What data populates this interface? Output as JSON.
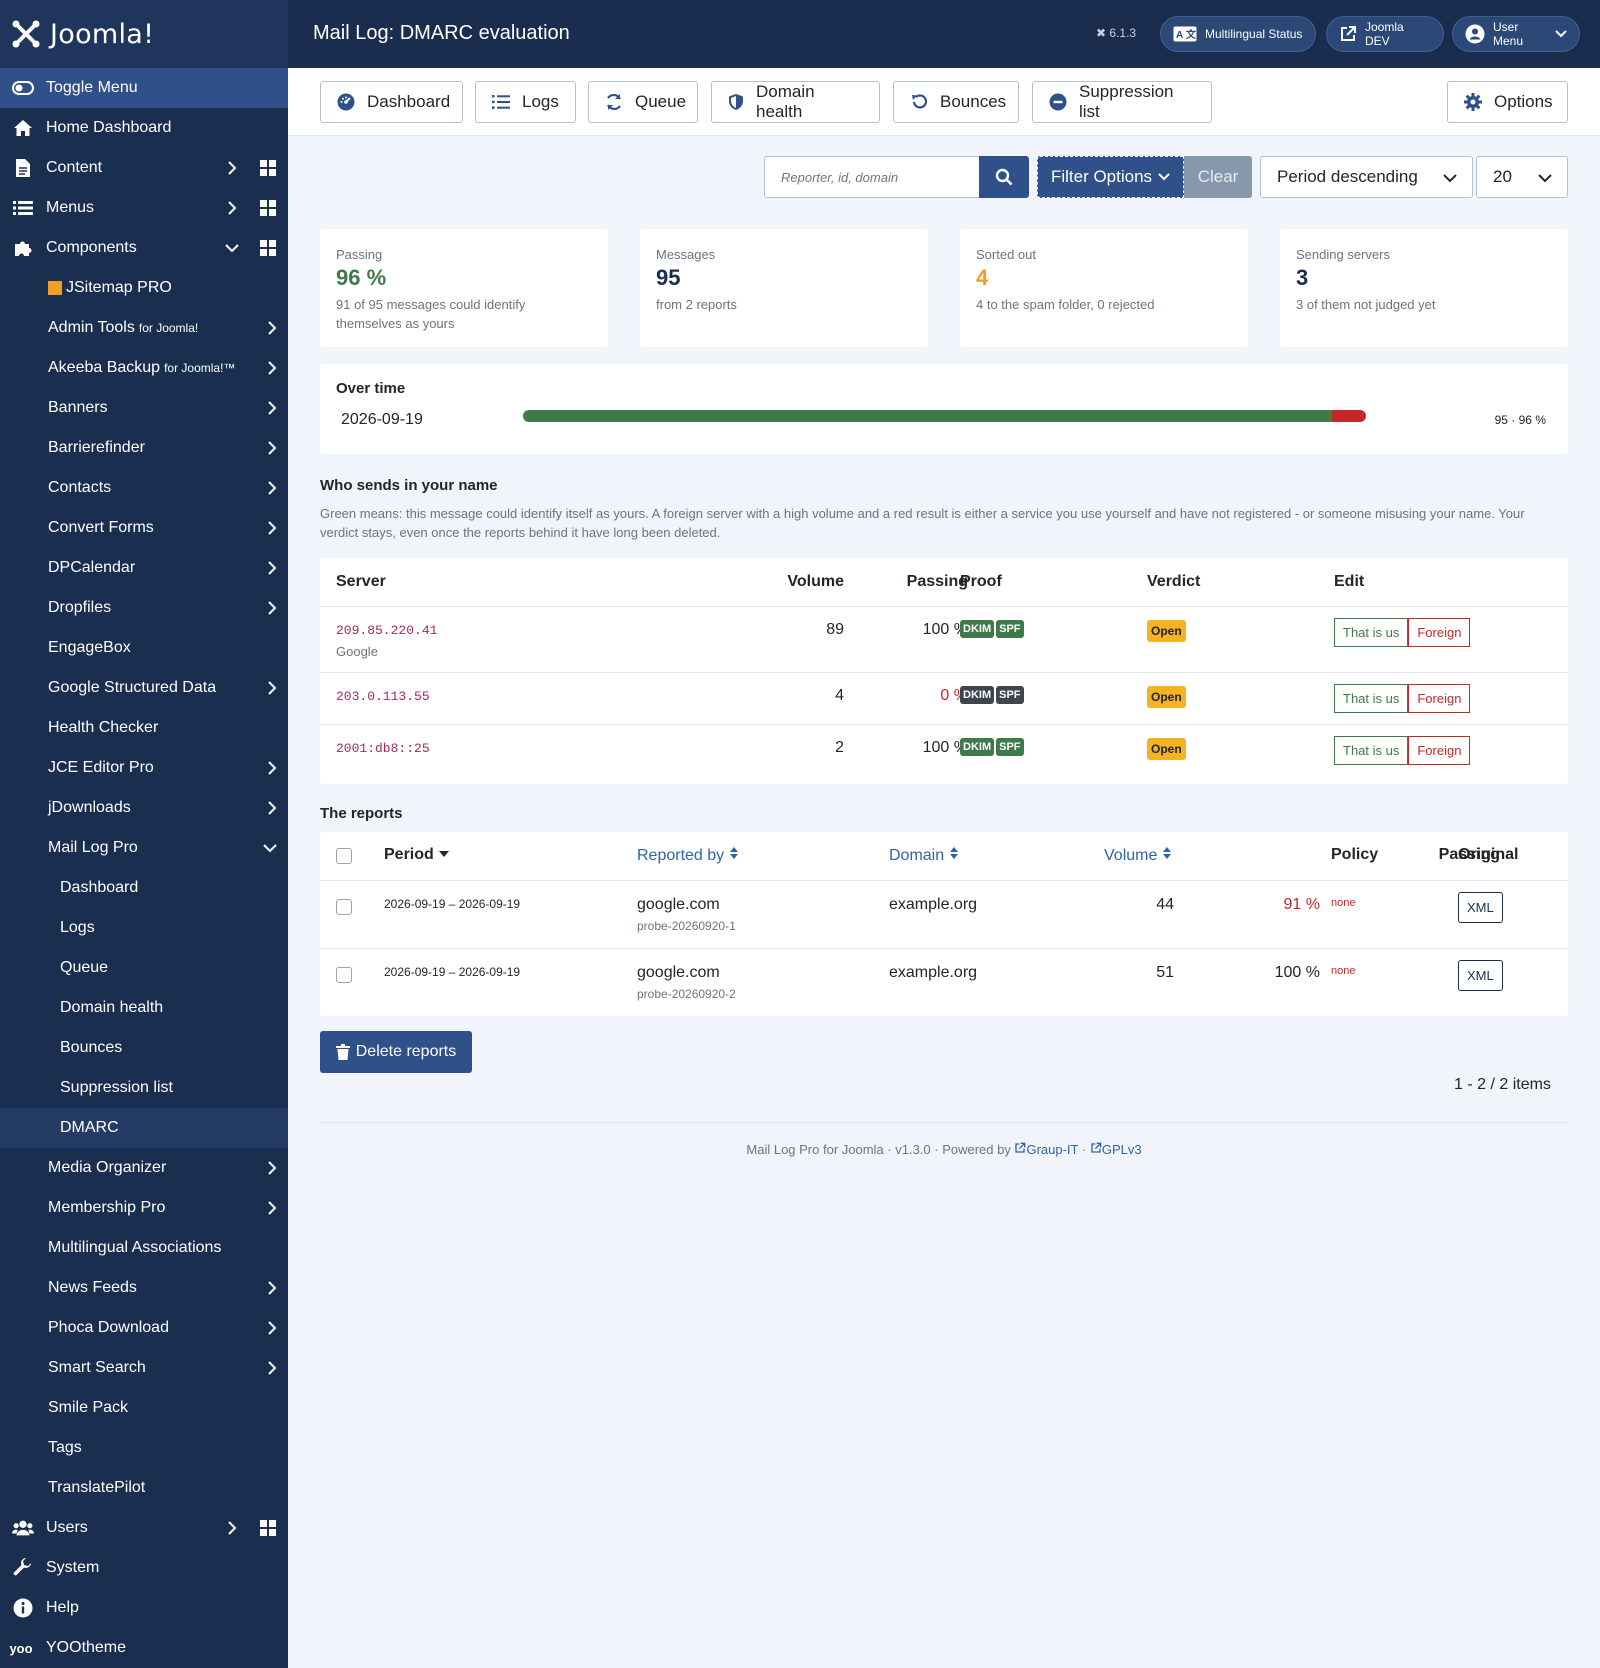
{
  "brand": {
    "name": "Joomla!"
  },
  "header": {
    "title": "Mail Log: DMARC evaluation",
    "version": "6.1.3",
    "multilingual_status": "Multilingual Status",
    "joomla_dev": "Joomla DEV",
    "user_menu": "User Menu"
  },
  "sidebar": {
    "toggle": "Toggle Menu",
    "home": "Home Dashboard",
    "content": "Content",
    "menus": "Menus",
    "components": "Components",
    "components_items": [
      {
        "label": "JSitemap PRO"
      },
      {
        "label": "Admin Tools",
        "suffix": "for Joomla!"
      },
      {
        "label": "Akeeba Backup",
        "suffix": "for Joomla!™"
      },
      {
        "label": "Banners"
      },
      {
        "label": "Barrierefinder"
      },
      {
        "label": "Contacts"
      },
      {
        "label": "Convert Forms"
      },
      {
        "label": "DPCalendar"
      },
      {
        "label": "Dropfiles"
      },
      {
        "label": "EngageBox"
      },
      {
        "label": "Google Structured Data"
      },
      {
        "label": "Health Checker"
      },
      {
        "label": "JCE Editor Pro"
      },
      {
        "label": "jDownloads"
      },
      {
        "label": "Mail Log Pro"
      }
    ],
    "mail_log_items": [
      "Dashboard",
      "Logs",
      "Queue",
      "Domain health",
      "Bounces",
      "Suppression list",
      "DMARC"
    ],
    "more_items": [
      "Media Organizer",
      "Membership Pro",
      "Multilingual Associations",
      "News Feeds",
      "Phoca Download",
      "Smart Search",
      "Smile Pack",
      "Tags",
      "TranslatePilot"
    ],
    "users": "Users",
    "system": "System",
    "help": "Help",
    "yootheme": "YOOtheme"
  },
  "toolbar": {
    "dashboard": "Dashboard",
    "logs": "Logs",
    "queue": "Queue",
    "domain_health": "Domain health",
    "bounces": "Bounces",
    "suppression_list": "Suppression list",
    "options": "Options"
  },
  "filters": {
    "search_placeholder": "Reporter, id, domain",
    "filter_options": "Filter Options",
    "clear": "Clear",
    "ordering": "Period descending",
    "limit": "20"
  },
  "cards": [
    {
      "label": "Passing",
      "value": "96 %",
      "sub": "91 of 95 messages could identify themselves as yours",
      "color": "#3e7a4a"
    },
    {
      "label": "Messages",
      "value": "95",
      "sub": "from 2 reports",
      "color": "#1b2d4e"
    },
    {
      "label": "Sorted out",
      "value": "4",
      "sub": "4 to the spam folder, 0 rejected",
      "color": "#f0a020"
    },
    {
      "label": "Sending servers",
      "value": "3",
      "sub": "3 of them not judged yet",
      "color": "#1b2d4e"
    }
  ],
  "over_time": {
    "title": "Over time",
    "date": "2026-09-19",
    "pass_fraction": 0.96,
    "value": "95 · 96 %"
  },
  "senders": {
    "title": "Who sends in your name",
    "description": "Green means: this message could identify itself as yours. A foreign server with a high volume and a red result is either a service you use yourself and have not registered - or someone misusing your name. Your verdict stays, even once the reports behind it have long been deleted.",
    "columns": {
      "server": "Server",
      "volume": "Volume",
      "passing": "Passing",
      "proof": "Proof",
      "verdict": "Verdict",
      "edit": "Edit"
    },
    "rows": [
      {
        "ip": "209.85.220.41",
        "host": "Google",
        "volume": "89",
        "passing": "100 %",
        "dkim": "DKIM",
        "spf": "SPF",
        "verdict": "Open",
        "us": "That is us",
        "foreign": "Foreign"
      },
      {
        "ip": "203.0.113.55",
        "host": "",
        "volume": "4",
        "passing": "0 %",
        "dkim": "DKIM",
        "spf": "SPF",
        "verdict": "Open",
        "us": "That is us",
        "foreign": "Foreign"
      },
      {
        "ip": "2001:db8::25",
        "host": "",
        "volume": "2",
        "passing": "100 %",
        "dkim": "DKIM",
        "spf": "SPF",
        "verdict": "Open",
        "us": "That is us",
        "foreign": "Foreign"
      }
    ]
  },
  "reports": {
    "title": "The reports",
    "columns": {
      "period": "Period",
      "reported_by": "Reported by",
      "domain": "Domain",
      "volume": "Volume",
      "passing": "Passing",
      "policy": "Policy",
      "original": "Original"
    },
    "rows": [
      {
        "period": "2026-09-19 – 2026-09-19",
        "reporter": "google.com",
        "id": "probe-20260920-1",
        "domain": "example.org",
        "volume": "44",
        "passing": "91 %",
        "policy": "none",
        "original": "XML"
      },
      {
        "period": "2026-09-19 – 2026-09-19",
        "reporter": "google.com",
        "id": "probe-20260920-2",
        "domain": "example.org",
        "volume": "51",
        "passing": "100 %",
        "policy": "none",
        "original": "XML"
      }
    ]
  },
  "actions": {
    "delete": "Delete reports"
  },
  "pagination": "1 - 2 / 2 items",
  "footer": {
    "text": "Mail Log Pro for Joomla · v1.3.0 · Powered by",
    "link1": "Graup-IT",
    "sep": "·",
    "link2": "GPLv3"
  }
}
